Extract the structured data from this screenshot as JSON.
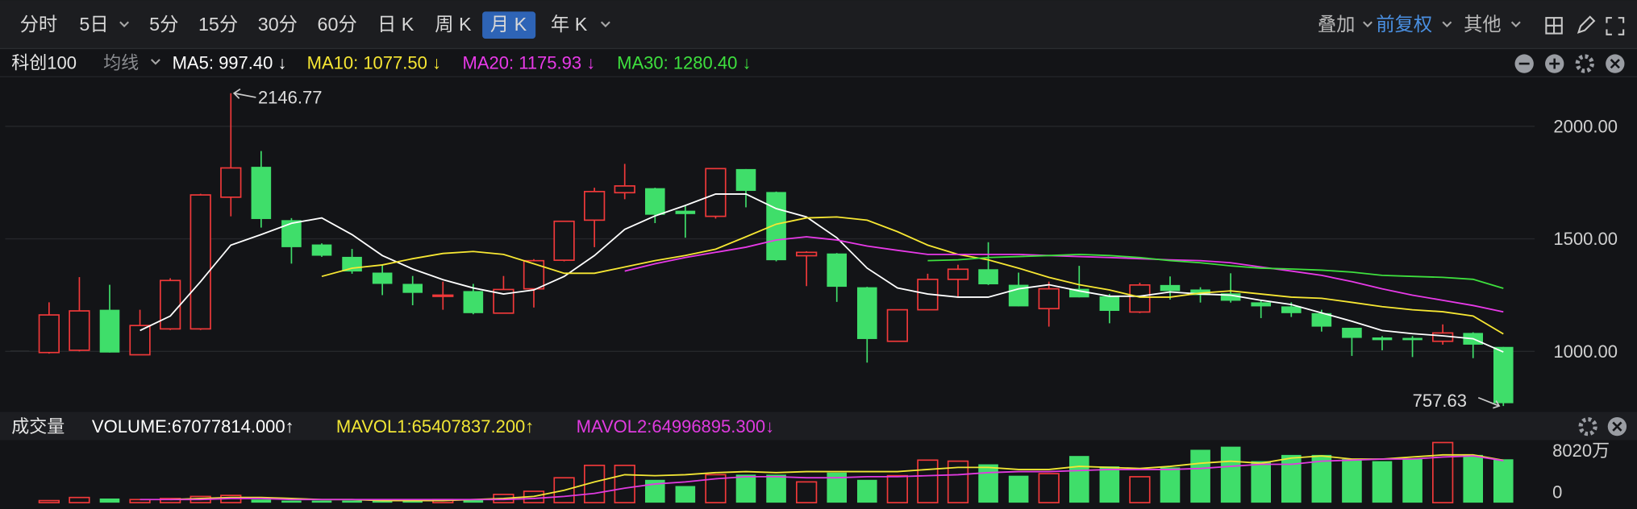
{
  "toolbar": {
    "periods": [
      "分时",
      "5日",
      "5分",
      "15分",
      "30分",
      "60分",
      "日 K",
      "周 K",
      "月 K",
      "年 K"
    ],
    "right": [
      "叠加",
      "前复权",
      "其他"
    ]
  },
  "chart_data": [
    {
      "type": "candlestick",
      "title": "科创100",
      "indicator": "均线",
      "open": [
        995,
        1005,
        1185,
        985,
        1100,
        1100,
        1685,
        1820,
        1583,
        1475,
        1420,
        1350,
        1300,
        1245,
        1268,
        1170,
        1278,
        1405,
        1583,
        1705,
        1725,
        1625,
        1600,
        1810,
        1708,
        1425,
        1435,
        1285,
        1045,
        1185,
        1320,
        1365,
        1296,
        1190,
        1278,
        1245,
        1175,
        1295,
        1275,
        1258,
        1218,
        1200,
        1170,
        1105,
        1062,
        1060,
        1045,
        1082,
        1020
      ],
      "high": [
        1218,
        1330,
        1296,
        1185,
        1325,
        1700,
        2146.77,
        1890,
        1592,
        1480,
        1455,
        1385,
        1335,
        1310,
        1300,
        1335,
        1410,
        1580,
        1727,
        1833,
        1727,
        1645,
        1815,
        1810,
        1710,
        1445,
        1437,
        1287,
        1185,
        1345,
        1385,
        1485,
        1350,
        1310,
        1380,
        1255,
        1305,
        1333,
        1285,
        1347,
        1227,
        1218,
        1185,
        1105,
        1068,
        1068,
        1120,
        1085,
        1020
      ],
      "low": [
        990,
        1000,
        995,
        985,
        1095,
        1095,
        1600,
        1550,
        1390,
        1420,
        1345,
        1250,
        1205,
        1185,
        1165,
        1170,
        1195,
        1400,
        1463,
        1676,
        1570,
        1505,
        1590,
        1640,
        1400,
        1290,
        1220,
        950,
        1045,
        1185,
        1240,
        1295,
        1200,
        1110,
        1240,
        1125,
        1170,
        1230,
        1217,
        1217,
        1148,
        1153,
        1088,
        980,
        1005,
        975,
        1030,
        970,
        757.63
      ],
      "close": [
        1162,
        1180,
        995,
        1115,
        1315,
        1695,
        1815,
        1588,
        1463,
        1425,
        1355,
        1300,
        1260,
        1250,
        1170,
        1275,
        1403,
        1578,
        1710,
        1735,
        1607,
        1610,
        1812,
        1713,
        1405,
        1440,
        1287,
        1055,
        1185,
        1320,
        1365,
        1298,
        1200,
        1278,
        1240,
        1180,
        1295,
        1268,
        1250,
        1225,
        1200,
        1170,
        1110,
        1060,
        1050,
        1050,
        1082,
        1030,
        770
      ],
      "up_color": "#f0393a",
      "down_color": "#3fde6a",
      "series": [
        {
          "name": "MA5: 997.40 ↓",
          "color": "#ffffff",
          "values": [
            null,
            null,
            null,
            1093,
            1157,
            1310,
            1472,
            1519,
            1569,
            1593,
            1519,
            1426,
            1366,
            1319,
            1282,
            1255,
            1273,
            1333,
            1426,
            1542,
            1602,
            1648,
            1699,
            1699,
            1634,
            1597,
            1505,
            1370,
            1282,
            1255,
            1241,
            1241,
            1278,
            1296,
            1269,
            1245,
            1245,
            1264,
            1255,
            1250,
            1227,
            1208,
            1171,
            1134,
            1093,
            1079,
            1069,
            1056,
            997.4
          ]
        },
        {
          "name": "MA10: 1077.50 ↓",
          "color": "#f7e733",
          "values": [
            null,
            null,
            null,
            null,
            null,
            null,
            null,
            null,
            null,
            1333,
            1370,
            1384,
            1412,
            1435,
            1444,
            1431,
            1389,
            1347,
            1347,
            1375,
            1403,
            1426,
            1454,
            1509,
            1565,
            1593,
            1597,
            1583,
            1532,
            1472,
            1431,
            1407,
            1370,
            1329,
            1296,
            1273,
            1241,
            1241,
            1259,
            1269,
            1255,
            1241,
            1236,
            1218,
            1199,
            1185,
            1176,
            1157,
            1077.5
          ]
        },
        {
          "name": "MA20: 1175.93 ↓",
          "color": "#e83ae8",
          "values": [
            null,
            null,
            null,
            null,
            null,
            null,
            null,
            null,
            null,
            null,
            null,
            null,
            null,
            null,
            null,
            null,
            null,
            null,
            null,
            1357,
            1389,
            1417,
            1440,
            1463,
            1495,
            1509,
            1495,
            1468,
            1449,
            1431,
            1431,
            1431,
            1431,
            1426,
            1421,
            1417,
            1412,
            1407,
            1403,
            1394,
            1375,
            1357,
            1338,
            1310,
            1278,
            1250,
            1227,
            1204,
            1175.93
          ]
        },
        {
          "name": "MA30: 1280.40 ↓",
          "color": "#3ee03e",
          "values": [
            null,
            null,
            null,
            null,
            null,
            null,
            null,
            null,
            null,
            null,
            null,
            null,
            null,
            null,
            null,
            null,
            null,
            null,
            null,
            null,
            null,
            null,
            null,
            null,
            null,
            null,
            null,
            null,
            null,
            1403,
            1407,
            1417,
            1421,
            1426,
            1431,
            1426,
            1417,
            1403,
            1394,
            1380,
            1370,
            1366,
            1361,
            1352,
            1338,
            1333,
            1329,
            1320,
            1280.4
          ]
        }
      ],
      "ylim": [
        745,
        2190
      ],
      "yticks": [
        {
          "value": 1000,
          "label": "1000.00"
        },
        {
          "value": 1500,
          "label": "1500.00"
        },
        {
          "value": 2000,
          "label": "2000.00"
        }
      ],
      "grid": true
    },
    {
      "type": "bar",
      "title": "成交量",
      "series": [
        {
          "name": "VOLUME:67077814.000↑",
          "values": [
            3200000,
            8000000,
            6400000,
            4800000,
            6400000,
            9600000,
            11200000,
            4800000,
            3200000,
            3200000,
            3200000,
            3200000,
            3200000,
            4800000,
            4800000,
            12800000,
            17600000,
            38500000,
            57700000,
            57700000,
            35300000,
            25700000,
            43300000,
            43300000,
            43300000,
            32100000,
            46500000,
            35300000,
            41700000,
            65800000,
            64200000,
            59300000,
            41700000,
            44900000,
            72200000,
            56100000,
            40100000,
            54500000,
            81800000,
            86600000,
            64200000,
            73800000,
            73800000,
            67400000,
            64200000,
            67400000,
            93000000,
            73800000,
            67077814
          ]
        },
        {
          "name": "MAVOL1:65407837.200↑",
          "color": "#f2e635",
          "values": [
            null,
            null,
            null,
            null,
            4800000,
            6400000,
            8000000,
            8000000,
            6400000,
            4800000,
            4800000,
            3200000,
            3200000,
            3200000,
            4800000,
            6400000,
            9600000,
            19200000,
            32100000,
            43300000,
            41700000,
            43300000,
            46500000,
            48100000,
            46500000,
            48100000,
            48100000,
            48100000,
            48100000,
            51300000,
            54500000,
            54500000,
            51300000,
            51300000,
            56100000,
            54500000,
            52900000,
            56100000,
            60900000,
            64200000,
            60900000,
            69000000,
            72200000,
            67400000,
            67400000,
            70600000,
            73800000,
            73800000,
            65407837.2
          ]
        },
        {
          "name": "MAVOL2:64996895.300↓",
          "color": "#e03be0",
          "values": [
            null,
            null,
            null,
            4800000,
            4800000,
            4800000,
            6400000,
            6400000,
            4800000,
            4800000,
            4800000,
            4800000,
            4800000,
            4800000,
            4800000,
            4800000,
            6400000,
            9600000,
            14400000,
            22500000,
            28900000,
            32100000,
            36900000,
            40100000,
            40100000,
            38500000,
            38500000,
            40100000,
            40100000,
            41700000,
            43300000,
            46500000,
            48100000,
            48100000,
            49700000,
            51300000,
            51300000,
            51300000,
            52900000,
            56100000,
            59300000,
            59300000,
            64200000,
            65800000,
            67400000,
            67400000,
            70600000,
            72200000,
            64996895.3
          ]
        }
      ],
      "ylim": [
        0,
        100000000
      ],
      "yticks": [
        {
          "value": 80200000,
          "label": "8020万"
        },
        0
      ]
    }
  ]
}
